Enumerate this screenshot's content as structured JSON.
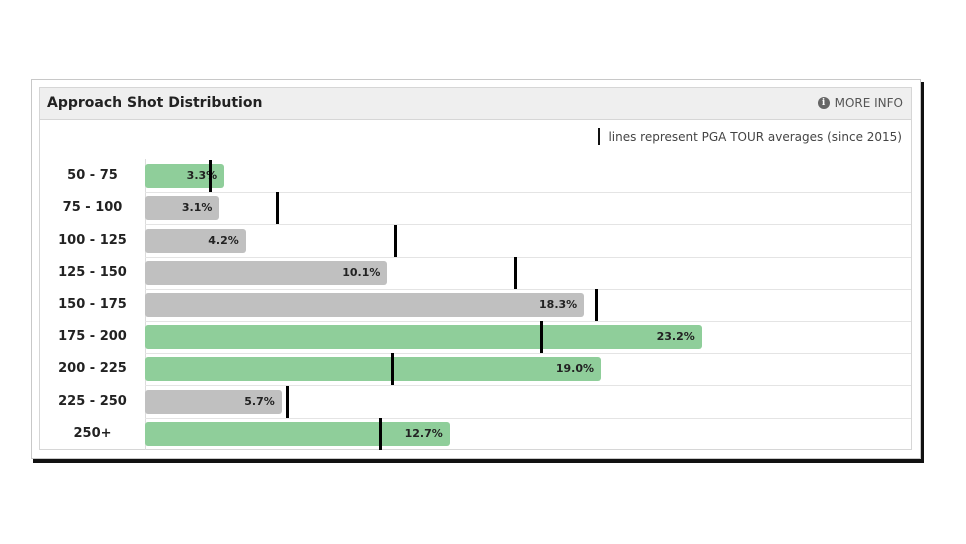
{
  "widget": {
    "title": "Approach Shot Distribution",
    "more_info": "MORE INFO",
    "legend_text": "lines represent PGA TOUR averages (since 2015)"
  },
  "colors": {
    "above_average": "#8fce9a",
    "below_average": "#c0c0c0",
    "average_line": "#000000"
  },
  "chart_data": {
    "type": "bar",
    "orientation": "horizontal",
    "title": "Approach Shot Distribution",
    "categories": [
      "50 - 75",
      "75 - 100",
      "100 - 125",
      "125 - 150",
      "150 - 175",
      "175 - 200",
      "200 - 225",
      "225 - 250",
      "250+"
    ],
    "series": [
      {
        "values": [
          3.3,
          3.1,
          4.2,
          10.1,
          18.3,
          23.2,
          19.0,
          5.7,
          12.7
        ],
        "labels": [
          "3.3%",
          "3.1%",
          "4.2%",
          "10.1%",
          "18.3%",
          "23.2%",
          "19.0%",
          "5.7%",
          "12.7%"
        ]
      },
      {
        "name": "PGA TOUR averages (since 2015)",
        "values": [
          2.7,
          5.5,
          10.4,
          15.4,
          18.8,
          16.5,
          10.3,
          5.9,
          9.8
        ]
      }
    ],
    "bar_colors": [
      "above_average",
      "below_average",
      "below_average",
      "below_average",
      "below_average",
      "above_average",
      "above_average",
      "below_average",
      "above_average"
    ],
    "xlim": [
      0,
      24
    ],
    "grid": false
  }
}
